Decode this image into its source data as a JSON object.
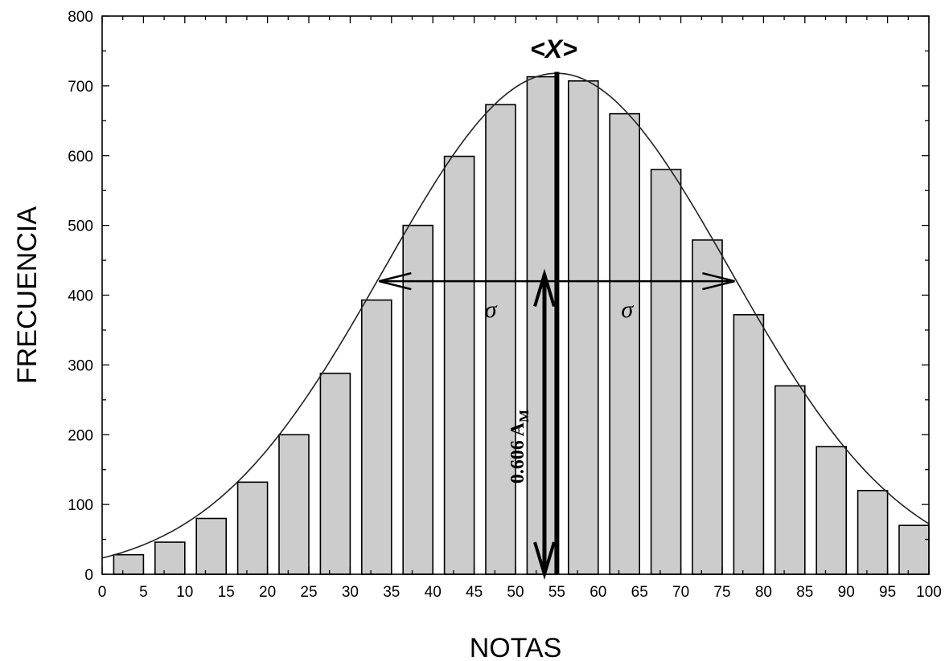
{
  "chart_data": {
    "type": "bar",
    "xlabel": "NOTAS",
    "ylabel": "FRECUENCIA",
    "xlim": [
      0,
      100
    ],
    "ylim": [
      0,
      800
    ],
    "x_ticks": [
      "0",
      "5",
      "10",
      "15",
      "20",
      "25",
      "30",
      "35",
      "40",
      "45",
      "50",
      "55",
      "60",
      "65",
      "70",
      "75",
      "80",
      "85",
      "90",
      "95",
      "100"
    ],
    "y_ticks": [
      "0",
      "100",
      "200",
      "300",
      "400",
      "500",
      "600",
      "700",
      "800"
    ],
    "bin_width": 5,
    "bar_width": 3.6,
    "bar_color": "#cccccc",
    "categories": [
      "0-5",
      "5-10",
      "10-15",
      "15-20",
      "20-25",
      "25-30",
      "30-35",
      "35-40",
      "40-45",
      "45-50",
      "50-55",
      "55-60",
      "60-65",
      "65-70",
      "70-75",
      "75-80",
      "80-85",
      "85-90",
      "90-95",
      "95-100"
    ],
    "values": [
      28,
      46,
      80,
      132,
      200,
      288,
      393,
      500,
      599,
      673,
      713,
      707,
      660,
      580,
      479,
      372,
      270,
      183,
      120,
      70
    ],
    "curve": {
      "type": "gaussian",
      "mean": 55,
      "sigma": 21,
      "amplitude": 718
    },
    "annotations": {
      "mean_label": "<X>",
      "mean_x": 55,
      "sigma_label_left": "σ",
      "sigma_label_right": "σ",
      "sigma_arrow": {
        "x_from": 33.5,
        "x_to": 76.5,
        "y": 420
      },
      "height_label": "0.606 A",
      "height_label_sub": "M",
      "height_arrow": {
        "x": 53.5,
        "y_from": 0,
        "y_to": 430
      }
    },
    "grid": false
  }
}
